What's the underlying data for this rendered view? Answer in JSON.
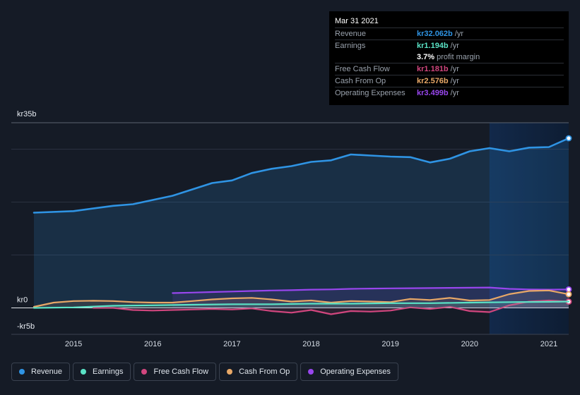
{
  "chart_data": {
    "type": "area",
    "title": "",
    "y_unit": "kr",
    "ylim": [
      -5,
      35
    ],
    "y_tick_labels": [
      {
        "value": 35,
        "label": "kr35b"
      },
      {
        "value": 0,
        "label": "kr0"
      },
      {
        "value": -5,
        "label": "-kr5b"
      }
    ],
    "gridlines": [
      0,
      10,
      20,
      30,
      35
    ],
    "xlim": [
      2014.45,
      2021.25
    ],
    "x_ticks": [
      {
        "value": 2015,
        "label": "2015"
      },
      {
        "value": 2016,
        "label": "2016"
      },
      {
        "value": 2017,
        "label": "2017"
      },
      {
        "value": 2018,
        "label": "2018"
      },
      {
        "value": 2019,
        "label": "2019"
      },
      {
        "value": 2020,
        "label": "2020"
      },
      {
        "value": 2021,
        "label": "2021"
      }
    ],
    "highlight_from": 2020.25,
    "series": [
      {
        "name": "Revenue",
        "color": "#2f94e4",
        "fill": true,
        "end_marker": true,
        "points": [
          [
            2014.5,
            18.0
          ],
          [
            2015.0,
            18.3
          ],
          [
            2015.5,
            19.3
          ],
          [
            2015.75,
            19.6
          ],
          [
            2016.0,
            20.4
          ],
          [
            2016.25,
            21.2
          ],
          [
            2016.5,
            22.4
          ],
          [
            2016.75,
            23.6
          ],
          [
            2017.0,
            24.1
          ],
          [
            2017.25,
            25.5
          ],
          [
            2017.5,
            26.3
          ],
          [
            2017.75,
            26.8
          ],
          [
            2018.0,
            27.6
          ],
          [
            2018.25,
            27.9
          ],
          [
            2018.5,
            29.0
          ],
          [
            2018.75,
            28.8
          ],
          [
            2019.0,
            28.6
          ],
          [
            2019.25,
            28.5
          ],
          [
            2019.5,
            27.5
          ],
          [
            2019.75,
            28.2
          ],
          [
            2020.0,
            29.6
          ],
          [
            2020.25,
            30.2
          ],
          [
            2020.5,
            29.6
          ],
          [
            2020.75,
            30.3
          ],
          [
            2021.0,
            30.4
          ],
          [
            2021.25,
            32.062
          ]
        ]
      },
      {
        "name": "Operating Expenses",
        "color": "#9846ed",
        "fill": true,
        "end_marker": true,
        "points": [
          [
            2016.25,
            2.8
          ],
          [
            2016.5,
            2.9
          ],
          [
            2016.75,
            3.0
          ],
          [
            2017.0,
            3.1
          ],
          [
            2017.25,
            3.2
          ],
          [
            2017.5,
            3.3
          ],
          [
            2017.75,
            3.35
          ],
          [
            2018.0,
            3.45
          ],
          [
            2018.25,
            3.5
          ],
          [
            2018.5,
            3.6
          ],
          [
            2018.75,
            3.65
          ],
          [
            2019.0,
            3.7
          ],
          [
            2019.25,
            3.72
          ],
          [
            2019.5,
            3.75
          ],
          [
            2019.75,
            3.78
          ],
          [
            2020.0,
            3.82
          ],
          [
            2020.25,
            3.85
          ],
          [
            2020.5,
            3.6
          ],
          [
            2020.75,
            3.5
          ],
          [
            2021.0,
            3.45
          ],
          [
            2021.25,
            3.499
          ]
        ]
      },
      {
        "name": "Cash From Op",
        "color": "#e8a867",
        "fill": true,
        "end_marker": true,
        "points": [
          [
            2014.5,
            0.2
          ],
          [
            2014.75,
            1.0
          ],
          [
            2015.0,
            1.3
          ],
          [
            2015.25,
            1.35
          ],
          [
            2015.5,
            1.3
          ],
          [
            2015.75,
            1.1
          ],
          [
            2016.0,
            1.0
          ],
          [
            2016.25,
            1.0
          ],
          [
            2016.5,
            1.3
          ],
          [
            2016.75,
            1.6
          ],
          [
            2017.0,
            1.8
          ],
          [
            2017.25,
            1.9
          ],
          [
            2017.5,
            1.6
          ],
          [
            2017.75,
            1.2
          ],
          [
            2018.0,
            1.4
          ],
          [
            2018.25,
            1.0
          ],
          [
            2018.5,
            1.3
          ],
          [
            2018.75,
            1.2
          ],
          [
            2019.0,
            1.1
          ],
          [
            2019.25,
            1.7
          ],
          [
            2019.5,
            1.5
          ],
          [
            2019.75,
            1.9
          ],
          [
            2020.0,
            1.4
          ],
          [
            2020.25,
            1.5
          ],
          [
            2020.5,
            2.6
          ],
          [
            2020.75,
            3.2
          ],
          [
            2021.0,
            3.3
          ],
          [
            2021.25,
            2.576
          ]
        ]
      },
      {
        "name": "Free Cash Flow",
        "color": "#d1467e",
        "fill": true,
        "end_marker": true,
        "points": [
          [
            2015.25,
            0.0
          ],
          [
            2015.5,
            0.0
          ],
          [
            2015.75,
            -0.4
          ],
          [
            2016.0,
            -0.5
          ],
          [
            2016.25,
            -0.4
          ],
          [
            2016.5,
            -0.3
          ],
          [
            2016.75,
            -0.2
          ],
          [
            2017.0,
            -0.3
          ],
          [
            2017.25,
            -0.1
          ],
          [
            2017.5,
            -0.6
          ],
          [
            2017.75,
            -0.9
          ],
          [
            2018.0,
            -0.4
          ],
          [
            2018.25,
            -1.2
          ],
          [
            2018.5,
            -0.6
          ],
          [
            2018.75,
            -0.7
          ],
          [
            2019.0,
            -0.5
          ],
          [
            2019.25,
            0.1
          ],
          [
            2019.5,
            -0.2
          ],
          [
            2019.75,
            0.2
          ],
          [
            2020.0,
            -0.6
          ],
          [
            2020.25,
            -0.8
          ],
          [
            2020.5,
            0.5
          ],
          [
            2020.75,
            1.2
          ],
          [
            2021.0,
            1.4
          ],
          [
            2021.25,
            1.181
          ]
        ]
      },
      {
        "name": "Earnings",
        "color": "#5ae3c6",
        "fill": true,
        "end_marker": false,
        "points": [
          [
            2014.5,
            0.0
          ],
          [
            2015.0,
            0.1
          ],
          [
            2015.5,
            0.4
          ],
          [
            2016.0,
            0.5
          ],
          [
            2016.5,
            0.6
          ],
          [
            2017.0,
            0.7
          ],
          [
            2017.5,
            0.7
          ],
          [
            2018.0,
            0.8
          ],
          [
            2018.5,
            0.8
          ],
          [
            2019.0,
            0.9
          ],
          [
            2019.5,
            0.9
          ],
          [
            2020.0,
            1.0
          ],
          [
            2020.5,
            1.1
          ],
          [
            2021.0,
            1.15
          ],
          [
            2021.25,
            1.194
          ]
        ]
      }
    ]
  },
  "tooltip": {
    "date": "Mar 31 2021",
    "rows": [
      {
        "label": "Revenue",
        "value": "kr32.062b",
        "unit": "/yr",
        "color": "#2f94e4"
      },
      {
        "label": "Earnings",
        "value": "kr1.194b",
        "unit": "/yr",
        "color": "#5ae3c6"
      },
      {
        "label": "",
        "value": "3.7%",
        "unit": "profit margin",
        "color": "#ffffff"
      },
      {
        "label": "Free Cash Flow",
        "value": "kr1.181b",
        "unit": "/yr",
        "color": "#d1467e"
      },
      {
        "label": "Cash From Op",
        "value": "kr2.576b",
        "unit": "/yr",
        "color": "#e8a867"
      },
      {
        "label": "Operating Expenses",
        "value": "kr3.499b",
        "unit": "/yr",
        "color": "#9846ed"
      }
    ]
  },
  "legend": [
    {
      "label": "Revenue",
      "color": "#2f94e4"
    },
    {
      "label": "Earnings",
      "color": "#5ae3c6"
    },
    {
      "label": "Free Cash Flow",
      "color": "#d1467e"
    },
    {
      "label": "Cash From Op",
      "color": "#e8a867"
    },
    {
      "label": "Operating Expenses",
      "color": "#9846ed"
    }
  ]
}
